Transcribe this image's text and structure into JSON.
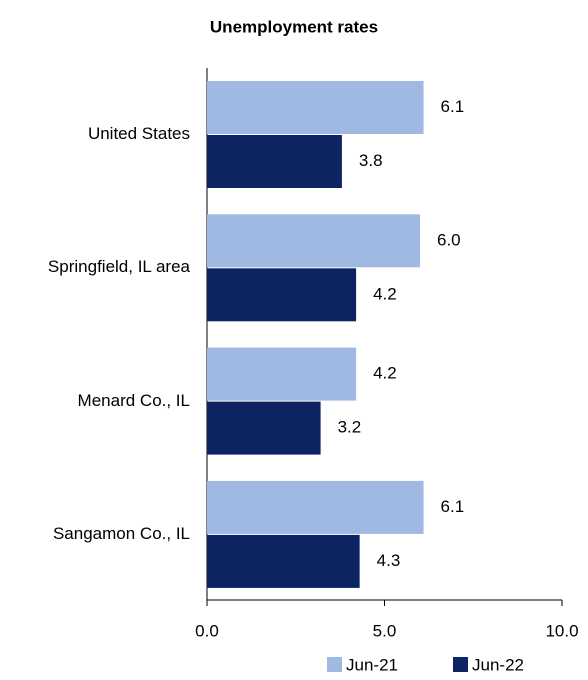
{
  "chart_data": {
    "type": "bar",
    "orientation": "horizontal",
    "title": "Unemployment rates",
    "categories": [
      "United States",
      "Springfield, IL area",
      "Menard Co., IL",
      "Sangamon Co., IL"
    ],
    "series": [
      {
        "name": "Jun-21",
        "color": "#9fb9e2",
        "values": [
          6.1,
          6.0,
          4.2,
          6.1
        ],
        "value_labels": [
          "6.1",
          "6.0",
          "4.2",
          "6.1"
        ]
      },
      {
        "name": "Jun-22",
        "color": "#0d2463",
        "values": [
          3.8,
          4.2,
          3.2,
          4.3
        ],
        "value_labels": [
          "3.8",
          "4.2",
          "3.2",
          "4.3"
        ]
      }
    ],
    "xlim": [
      0,
      10
    ],
    "xticks": [
      {
        "value": 0,
        "label": "0.0"
      },
      {
        "value": 5,
        "label": "5.0"
      },
      {
        "value": 10,
        "label": "10.0"
      }
    ],
    "grid": false,
    "legend": "bottom"
  }
}
